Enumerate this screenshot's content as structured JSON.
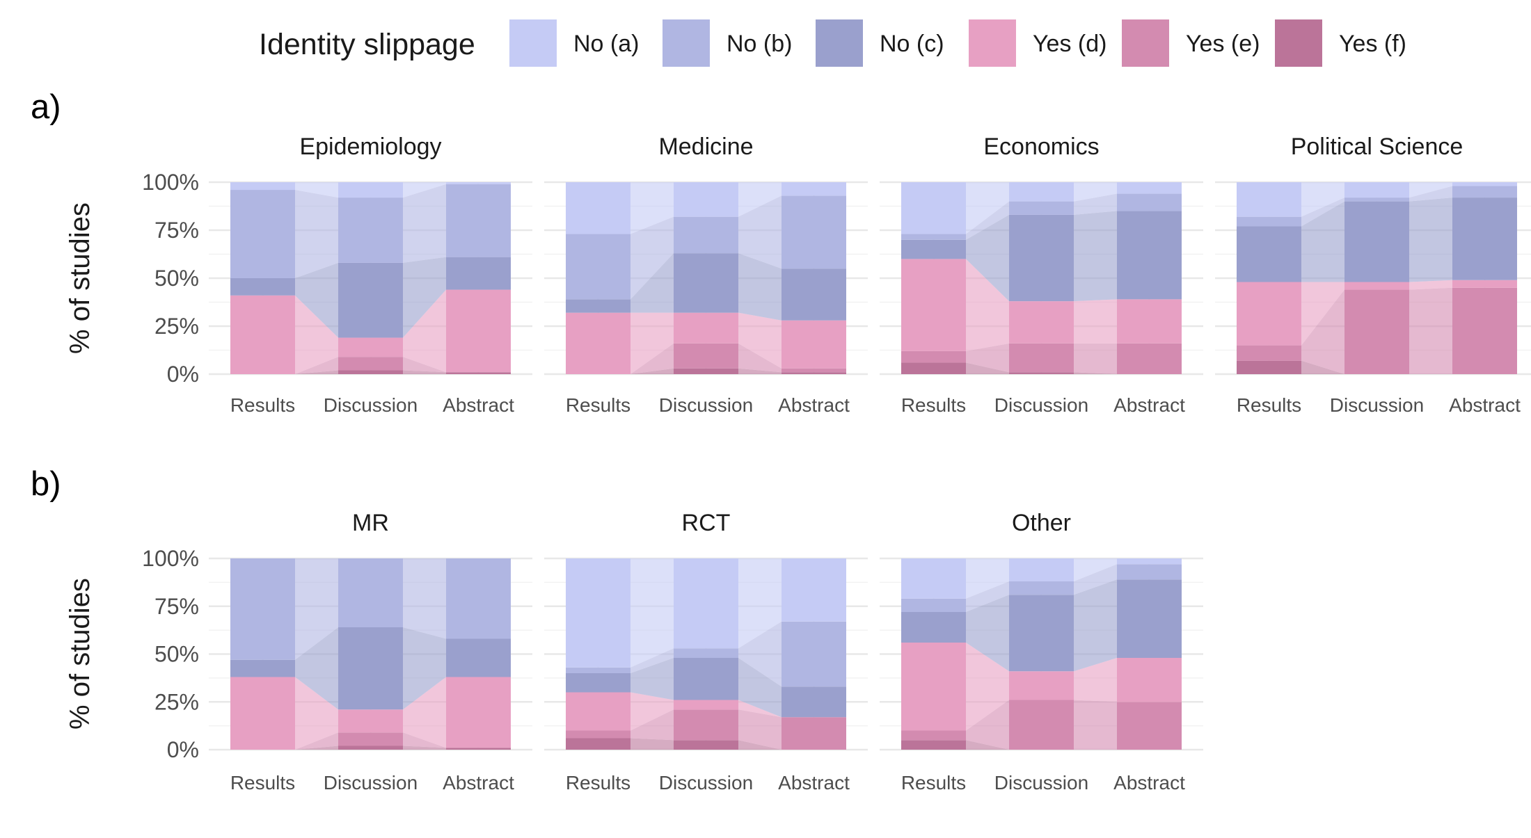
{
  "legend": {
    "title": "Identity slippage",
    "items": [
      {
        "label": "No (a)",
        "color": "#c5cbf5"
      },
      {
        "label": "No (b)",
        "color": "#b0b6e2"
      },
      {
        "label": "No (c)",
        "color": "#9aa0cd"
      },
      {
        "label": "Yes (d)",
        "color": "#e7a0c3"
      },
      {
        "label": "Yes (e)",
        "color": "#d38bb0"
      },
      {
        "label": "Yes (f)",
        "color": "#bb7499"
      }
    ]
  },
  "panel_labels": [
    "a)",
    "b)"
  ],
  "y_axis_title": "% of studies",
  "y_ticks": [
    "0%",
    "25%",
    "50%",
    "75%",
    "100%"
  ],
  "chart_data": [
    {
      "type": "bar",
      "stacked": true,
      "row": "a)",
      "title": "Epidemiology",
      "categories": [
        "Results",
        "Discussion",
        "Abstract"
      ],
      "ylabel": "% of studies",
      "ylim": [
        0,
        100
      ],
      "series": [
        {
          "name": "Yes (f)",
          "values": [
            0,
            2,
            1
          ]
        },
        {
          "name": "Yes (e)",
          "values": [
            0,
            7,
            0
          ]
        },
        {
          "name": "Yes (d)",
          "values": [
            41,
            10,
            43
          ]
        },
        {
          "name": "No (c)",
          "values": [
            9,
            39,
            17
          ]
        },
        {
          "name": "No (b)",
          "values": [
            46,
            34,
            38
          ]
        },
        {
          "name": "No (a)",
          "values": [
            4,
            8,
            1
          ]
        }
      ]
    },
    {
      "type": "bar",
      "stacked": true,
      "row": "a)",
      "title": "Medicine",
      "categories": [
        "Results",
        "Discussion",
        "Abstract"
      ],
      "ylabel": "% of studies",
      "ylim": [
        0,
        100
      ],
      "series": [
        {
          "name": "Yes (f)",
          "values": [
            0,
            3,
            1
          ]
        },
        {
          "name": "Yes (e)",
          "values": [
            0,
            13,
            2
          ]
        },
        {
          "name": "Yes (d)",
          "values": [
            32,
            16,
            25
          ]
        },
        {
          "name": "No (c)",
          "values": [
            7,
            31,
            27
          ]
        },
        {
          "name": "No (b)",
          "values": [
            34,
            19,
            38
          ]
        },
        {
          "name": "No (a)",
          "values": [
            27,
            18,
            7
          ]
        }
      ]
    },
    {
      "type": "bar",
      "stacked": true,
      "row": "a)",
      "title": "Economics",
      "categories": [
        "Results",
        "Discussion",
        "Abstract"
      ],
      "ylabel": "% of studies",
      "ylim": [
        0,
        100
      ],
      "series": [
        {
          "name": "Yes (f)",
          "values": [
            6,
            1,
            0
          ]
        },
        {
          "name": "Yes (e)",
          "values": [
            6,
            15,
            16
          ]
        },
        {
          "name": "Yes (d)",
          "values": [
            48,
            22,
            23
          ]
        },
        {
          "name": "No (c)",
          "values": [
            10,
            45,
            46
          ]
        },
        {
          "name": "No (b)",
          "values": [
            3,
            7,
            9
          ]
        },
        {
          "name": "No (a)",
          "values": [
            27,
            10,
            6
          ]
        }
      ]
    },
    {
      "type": "bar",
      "stacked": true,
      "row": "a)",
      "title": "Political Science",
      "categories": [
        "Results",
        "Discussion",
        "Abstract"
      ],
      "ylabel": "% of studies",
      "ylim": [
        0,
        100
      ],
      "series": [
        {
          "name": "Yes (f)",
          "values": [
            7,
            0,
            0
          ]
        },
        {
          "name": "Yes (e)",
          "values": [
            8,
            44,
            45
          ]
        },
        {
          "name": "Yes (d)",
          "values": [
            33,
            4,
            4
          ]
        },
        {
          "name": "No (c)",
          "values": [
            29,
            42,
            43
          ]
        },
        {
          "name": "No (b)",
          "values": [
            5,
            2,
            6
          ]
        },
        {
          "name": "No (a)",
          "values": [
            18,
            8,
            2
          ]
        }
      ]
    },
    {
      "type": "bar",
      "stacked": true,
      "row": "b)",
      "title": "MR",
      "categories": [
        "Results",
        "Discussion",
        "Abstract"
      ],
      "ylabel": "% of studies",
      "ylim": [
        0,
        100
      ],
      "series": [
        {
          "name": "Yes (f)",
          "values": [
            0,
            2,
            1
          ]
        },
        {
          "name": "Yes (e)",
          "values": [
            0,
            7,
            0
          ]
        },
        {
          "name": "Yes (d)",
          "values": [
            38,
            12,
            37
          ]
        },
        {
          "name": "No (c)",
          "values": [
            9,
            43,
            20
          ]
        },
        {
          "name": "No (b)",
          "values": [
            53,
            36,
            42
          ]
        },
        {
          "name": "No (a)",
          "values": [
            0,
            0,
            0
          ]
        }
      ]
    },
    {
      "type": "bar",
      "stacked": true,
      "row": "b)",
      "title": "RCT",
      "categories": [
        "Results",
        "Discussion",
        "Abstract"
      ],
      "ylabel": "% of studies",
      "ylim": [
        0,
        100
      ],
      "series": [
        {
          "name": "Yes (f)",
          "values": [
            6,
            5,
            0
          ]
        },
        {
          "name": "Yes (e)",
          "values": [
            4,
            16,
            17
          ]
        },
        {
          "name": "Yes (d)",
          "values": [
            20,
            5,
            0
          ]
        },
        {
          "name": "No (c)",
          "values": [
            10,
            22,
            16
          ]
        },
        {
          "name": "No (b)",
          "values": [
            3,
            5,
            34
          ]
        },
        {
          "name": "No (a)",
          "values": [
            57,
            47,
            33
          ]
        }
      ]
    },
    {
      "type": "bar",
      "stacked": true,
      "row": "b)",
      "title": "Other",
      "categories": [
        "Results",
        "Discussion",
        "Abstract"
      ],
      "ylabel": "% of studies",
      "ylim": [
        0,
        100
      ],
      "series": [
        {
          "name": "Yes (f)",
          "values": [
            5,
            0,
            0
          ]
        },
        {
          "name": "Yes (e)",
          "values": [
            5,
            26,
            25
          ]
        },
        {
          "name": "Yes (d)",
          "values": [
            46,
            15,
            23
          ]
        },
        {
          "name": "No (c)",
          "values": [
            16,
            40,
            41
          ]
        },
        {
          "name": "No (b)",
          "values": [
            7,
            7,
            8
          ]
        },
        {
          "name": "No (a)",
          "values": [
            21,
            12,
            3
          ]
        }
      ]
    }
  ]
}
